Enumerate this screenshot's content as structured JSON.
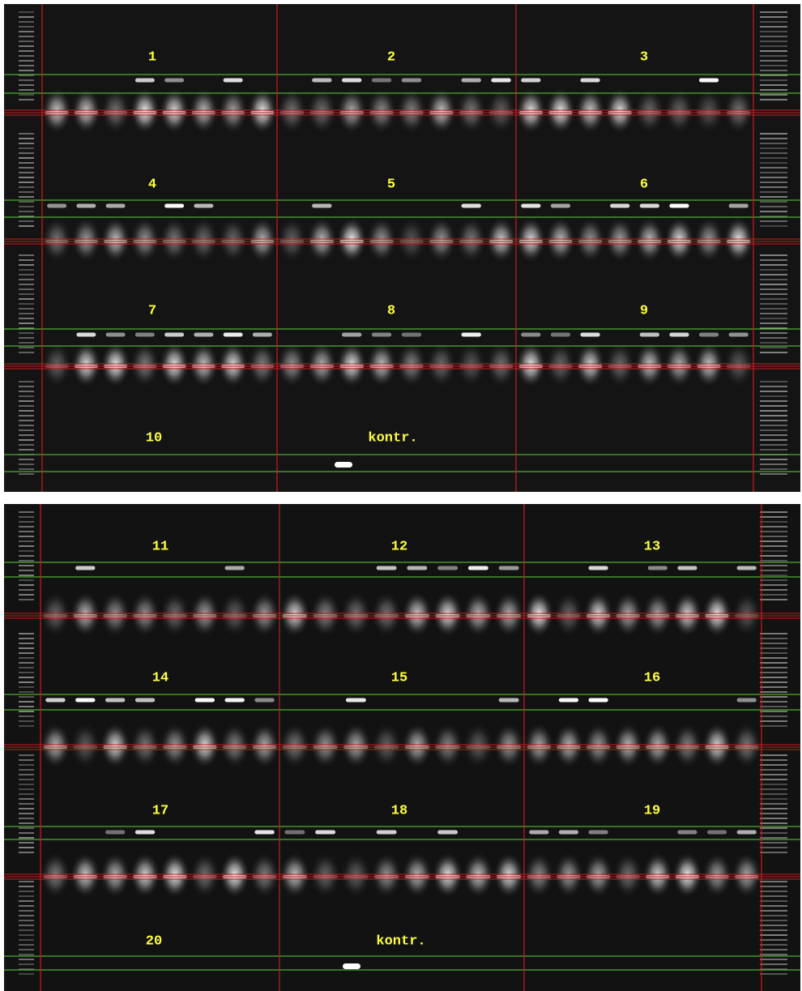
{
  "gels": [
    {
      "labels": [
        "1",
        "2",
        "3",
        "4",
        "5",
        "6",
        "7",
        "8",
        "9",
        "10",
        "kontr."
      ]
    },
    {
      "labels": [
        "11",
        "12",
        "13",
        "14",
        "15",
        "16",
        "17",
        "18",
        "19",
        "20",
        "kontr."
      ]
    }
  ]
}
